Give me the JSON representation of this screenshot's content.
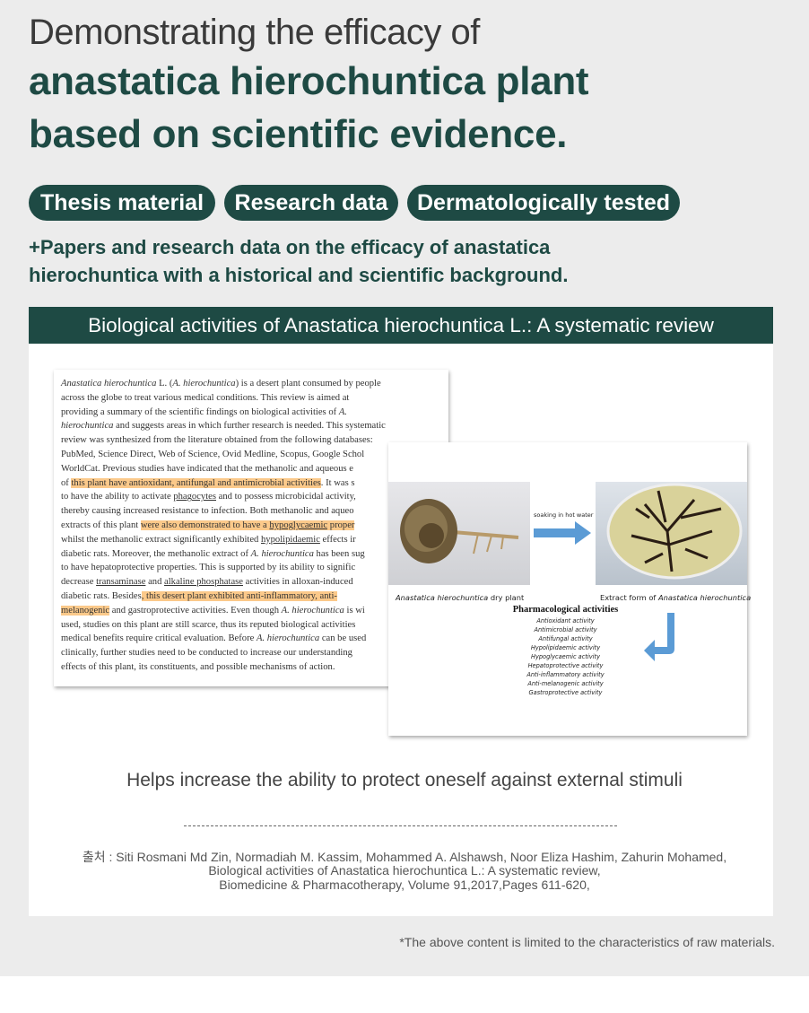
{
  "header": {
    "line1": "Demonstrating the efficacy of",
    "line2": "anastatica hierochuntica plant",
    "line3": "based on scientific evidence."
  },
  "tags": [
    "Thesis material",
    "Research data",
    "Dermatologically tested"
  ],
  "subtitle": {
    "line1": "+Papers and research data on the efficacy of anastatica",
    "line2": "hierochuntica with a historical and scientific background."
  },
  "banner": "Biological activities of Anastatica hierochuntica L.: A systematic review",
  "paper_lines": [
    [
      {
        "t": "Anastatica hierochuntica",
        "i": 1
      },
      {
        "t": " L. ("
      },
      {
        "t": "A. hierochuntica",
        "i": 1
      },
      {
        "t": ") is a desert plant consumed by people"
      }
    ],
    [
      {
        "t": "across the globe to treat various medical conditions. This review is aimed at"
      }
    ],
    [
      {
        "t": "providing a summary of the scientific findings on biological activities of "
      },
      {
        "t": "A.",
        "i": 1
      }
    ],
    [
      {
        "t": "hierochuntica",
        "i": 1
      },
      {
        "t": " and suggests areas in which further research is needed. This systematic"
      }
    ],
    [
      {
        "t": "review was synthesized from the literature obtained from the following databases:"
      }
    ],
    [
      {
        "t": "PubMed, Science Direct, Web of Science, Ovid Medline, Scopus, Google Schol"
      }
    ],
    [
      {
        "t": "WorldCat. Previous studies have indicated that the methanolic and aqueous e"
      }
    ],
    [
      {
        "t": "of "
      },
      {
        "t": "this plant have antioxidant, antifungal and antimicrobial activities",
        "hl": 1
      },
      {
        "t": ". It was s"
      }
    ],
    [
      {
        "t": "to have the ability to activate "
      },
      {
        "t": "phagocytes",
        "u": 1
      },
      {
        "t": " and to possess microbicidal activity,"
      }
    ],
    [
      {
        "t": "thereby causing increased resistance to infection. Both methanolic and aqueo"
      }
    ],
    [
      {
        "t": "extracts of this plant "
      },
      {
        "t": "were also demonstrated to have a ",
        "hl": 1
      },
      {
        "t": "hypoglycaemic",
        "hl": 1,
        "u": 1
      },
      {
        "t": " proper",
        "hl": 1
      }
    ],
    [
      {
        "t": "whilst the methanolic extract significantly exhibited "
      },
      {
        "t": "hypolipidaemic",
        "u": 1
      },
      {
        "t": " effects ir"
      }
    ],
    [
      {
        "t": "diabetic rats. Moreover, the methanolic extract of "
      },
      {
        "t": "A. hierochuntica",
        "i": 1
      },
      {
        "t": " has been sug"
      }
    ],
    [
      {
        "t": "to have hepatoprotective properties. This is supported by its ability to signific"
      }
    ],
    [
      {
        "t": "decrease "
      },
      {
        "t": "transaminase",
        "u": 1
      },
      {
        "t": " and "
      },
      {
        "t": "alkaline phosphatase",
        "u": 1
      },
      {
        "t": " activities in alloxan-induced"
      }
    ],
    [
      {
        "t": "diabetic rats. Besides"
      },
      {
        "t": ", this desert plant exhibited anti-inflammatory, anti-",
        "hl": 1
      }
    ],
    [
      {
        "t": "melanogenic",
        "hl": 1
      },
      {
        "t": " and gastroprotective activities. Even though "
      },
      {
        "t": "A. hierochuntica",
        "i": 1
      },
      {
        "t": " is wi"
      }
    ],
    [
      {
        "t": "used, studies on this plant are still scarce, thus its reputed biological activities"
      }
    ],
    [
      {
        "t": "medical benefits require critical evaluation. Before "
      },
      {
        "t": "A. hierochuntica",
        "i": 1
      },
      {
        "t": " can be used"
      }
    ],
    [
      {
        "t": "clinically, further studies need to be conducted to increase our understanding"
      }
    ],
    [
      {
        "t": "effects of this plant, its constituents, and possible mechanisms of action."
      }
    ]
  ],
  "figure": {
    "arrow_label": "soaking in hot water",
    "caption_left_italic": "Anastatica hierochuntica",
    "caption_left_rest": " dry plant",
    "caption_right_prefix": "Extract form of ",
    "caption_right_italic": "Anastatica hierochuntica",
    "pharma_title": "Pharmacological activities",
    "activities": [
      "Antioxidant activity",
      "Antimicrobial activity",
      "Antifungal activity",
      "Hypolipidaemic activity",
      "Hypoglycaemic activity",
      "Hepatoprotective activity",
      "Anti-inflammatory activity",
      "Anti-melanogenic activity",
      "Gastroprotective activity"
    ],
    "arrow_color": "#5b9bd5"
  },
  "helps": "Helps increase the ability to protect oneself against external stimuli",
  "citation": {
    "line1": "출처 : Siti Rosmani Md Zin, Normadiah M. Kassim, Mohammed A. Alshawsh, Noor Eliza Hashim, Zahurin Mohamed,",
    "line2": "Biological activities of Anastatica hierochuntica L.: A systematic review,",
    "line3": "Biomedicine & Pharmacotherapy, Volume 91,2017,Pages 611-620,"
  },
  "footnote": "*The above content is limited to the characteristics of raw materials.",
  "colors": {
    "brand": "#1e4a44",
    "highlight": "#fbc98a",
    "background": "#ececec"
  }
}
